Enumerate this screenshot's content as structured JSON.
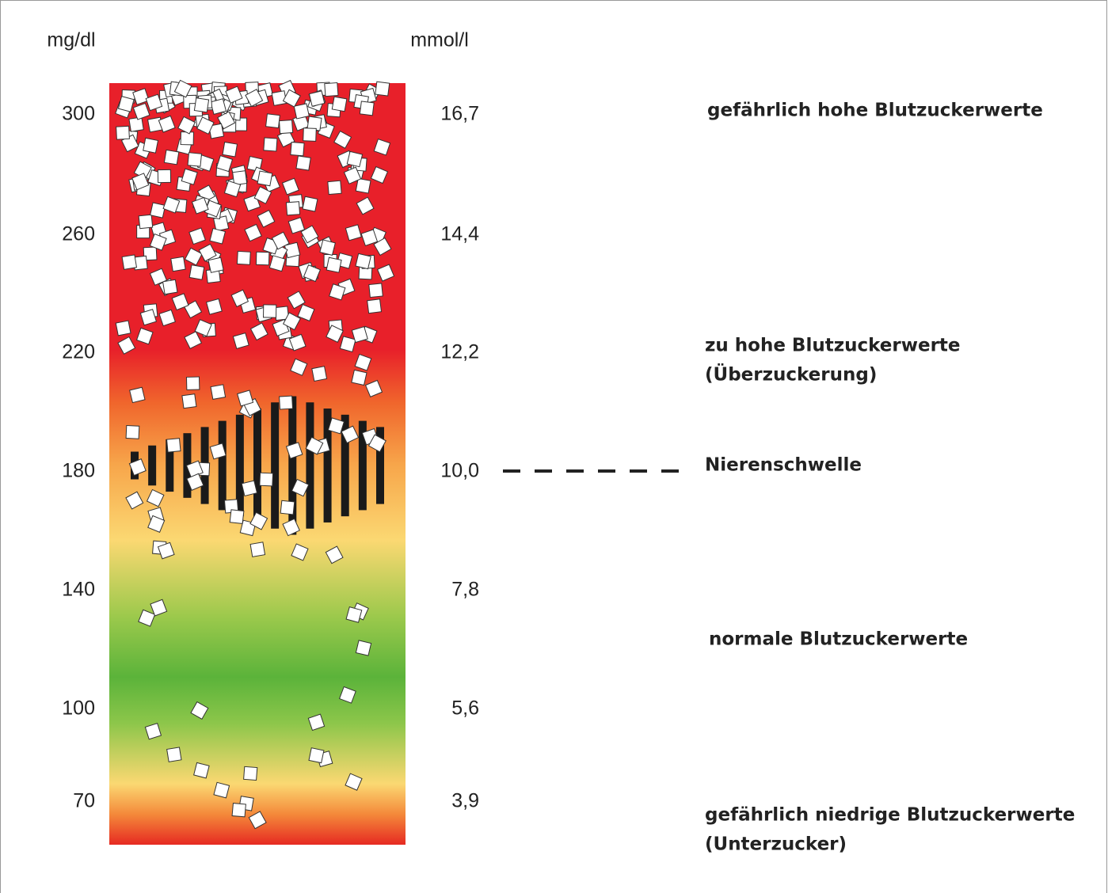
{
  "units": {
    "left": "mg/dl",
    "right": "mmol/l"
  },
  "scale": [
    {
      "mgdl": "300",
      "mmol": "16,7"
    },
    {
      "mgdl": "260",
      "mmol": "14,4"
    },
    {
      "mgdl": "220",
      "mmol": "12,2"
    },
    {
      "mgdl": "180",
      "mmol": "10,0"
    },
    {
      "mgdl": "140",
      "mmol": "7,8"
    },
    {
      "mgdl": "100",
      "mmol": "5,6"
    },
    {
      "mgdl": "70",
      "mmol": "3,9"
    }
  ],
  "zones": [
    {
      "lines": [
        "gefährlich hohe Blutzuckerwerte"
      ]
    },
    {
      "lines": [
        "zu hohe Blutzuckerwerte",
        "(Überzuckerung)"
      ]
    },
    {
      "lines": [
        "Nierenschwelle"
      ]
    },
    {
      "lines": [
        "normale Blutzuckerwerte"
      ]
    },
    {
      "lines": [
        "gefährlich niedrige Blutzuckerwerte",
        "(Unterzucker)"
      ]
    }
  ]
}
